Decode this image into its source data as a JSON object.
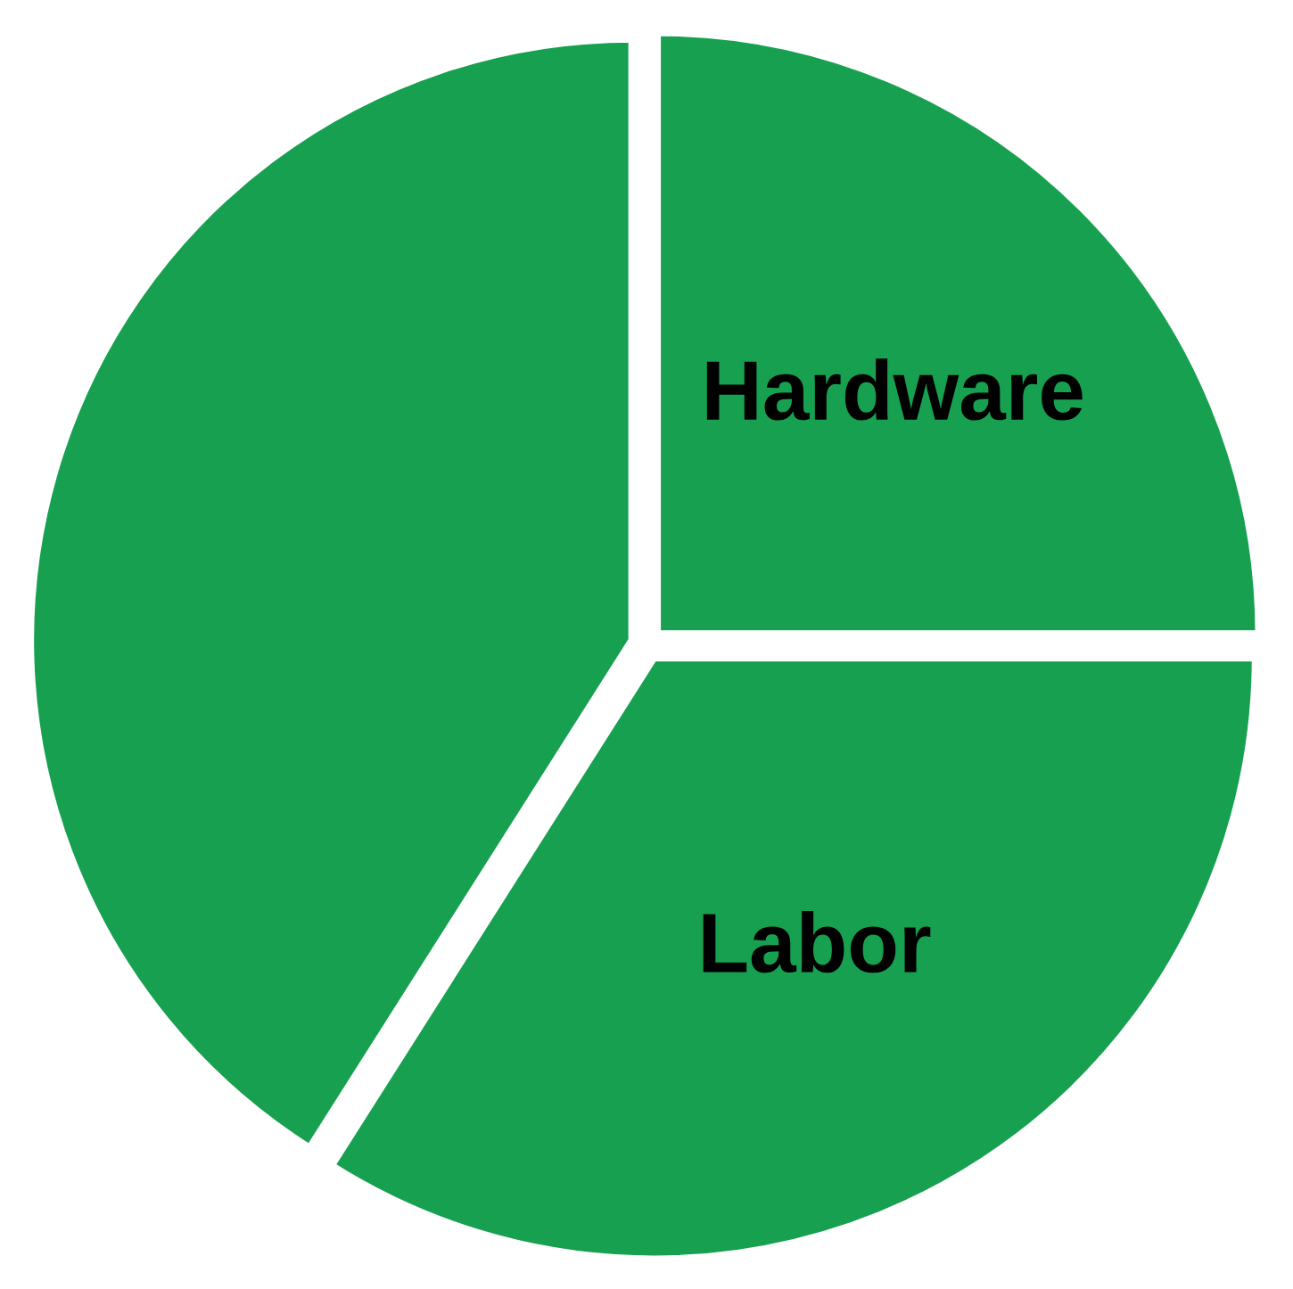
{
  "chart_data": {
    "type": "pie",
    "categories": [
      "Hardware",
      "Labor",
      null
    ],
    "values": [
      25,
      34,
      41
    ],
    "colors": [
      "#16a050",
      "#16a050",
      "#16a050"
    ]
  }
}
